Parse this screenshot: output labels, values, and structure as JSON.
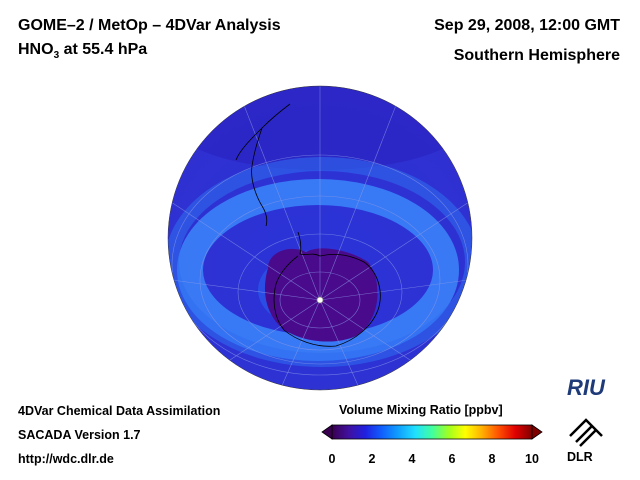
{
  "header": {
    "title_line1": "GOME–2 / MetOp – 4DVar Analysis",
    "title_line2_species": "HNO",
    "title_line2_subscript": "3",
    "title_line2_rest": " at 55.4 hPa",
    "date": "Sep 29, 2008, 12:00 GMT",
    "region": "Southern Hemisphere"
  },
  "footer": {
    "line1": "4DVar Chemical Data Assimilation",
    "line2": "SACADA Version 1.7",
    "line3": "http://wdc.dlr.de"
  },
  "colorbar": {
    "label": "Volume Mixing Ratio [ppbv]",
    "min": 0,
    "max": 10,
    "ticks": [
      "0",
      "2",
      "4",
      "6",
      "8",
      "10"
    ],
    "colors": [
      "#3a0050",
      "#4010a0",
      "#2020e0",
      "#1060ff",
      "#10a0ff",
      "#20e0ff",
      "#40ffa0",
      "#a0ff20",
      "#ffff00",
      "#ffb000",
      "#ff5000",
      "#e00000",
      "#800000"
    ]
  },
  "logos": {
    "riu": "RIU",
    "dlr": "DLR"
  },
  "map": {
    "projection": "orthographic, south polar view",
    "variable": "HNO3 volume mixing ratio (ppbv)",
    "ocean_color": "#2a3ce0",
    "vortex_core_color": "#4a0a8c",
    "collar_color": "#3a7cf8",
    "background_value_ppbv": 2.0,
    "vortex_core_value_ppbv": 0.5,
    "collar_value_ppbv": 3.0
  }
}
